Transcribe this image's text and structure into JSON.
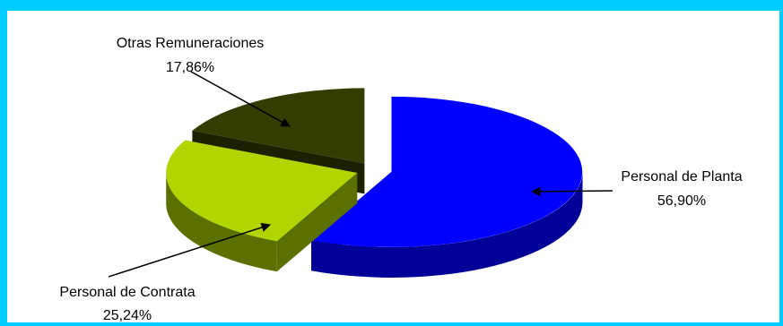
{
  "chart_data": {
    "type": "pie",
    "style": "3d-exploded",
    "slices": [
      {
        "label": "Personal de Planta",
        "value": 56.9,
        "value_label": "56,90%",
        "color": "#0000ff",
        "side_color": "#000099"
      },
      {
        "label": "Personal de Contrata",
        "value": 25.24,
        "value_label": "25,24%",
        "color": "#b2d400",
        "side_color": "#5c7000"
      },
      {
        "label": "Otras Remuneraciones",
        "value": 17.86,
        "value_label": "17,86%",
        "color": "#333d00",
        "side_color": "#1a2000"
      }
    ],
    "frame_color": "#00ccff"
  }
}
